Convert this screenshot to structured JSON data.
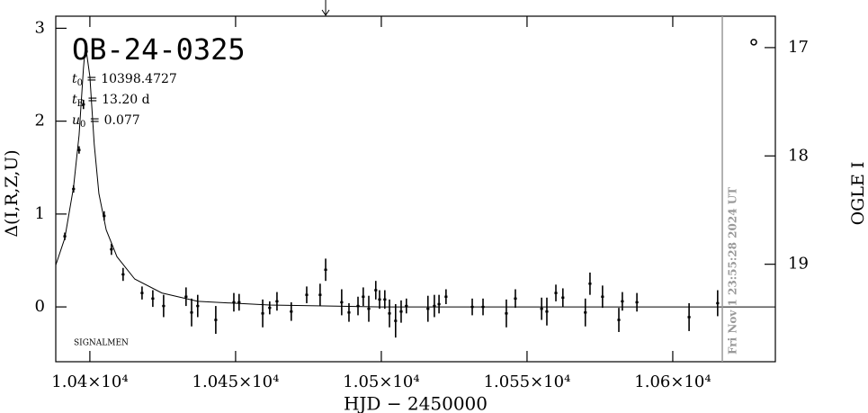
{
  "chart_data": {
    "type": "scatter",
    "title": "OB-24-0325",
    "params": [
      {
        "symbol": "t",
        "subscript": "0",
        "value": "= 10398.4727"
      },
      {
        "symbol": "t",
        "subscript": "E",
        "value": "= 13.20  d"
      },
      {
        "symbol": "u",
        "subscript": "0",
        "value": "= 0.077"
      }
    ],
    "credit": "SIGNALMEN",
    "x_label": "HJD  −  2450000",
    "y_label": "Δ(I,R,Z,U)",
    "y2_label": "OGLE I",
    "xlim": [
      10388.3,
      10635.2
    ],
    "ylim": [
      -0.59,
      3.13
    ],
    "y2lim": [
      19.9,
      16.71
    ],
    "xticks": [
      {
        "value": 10400,
        "label": "1.04×10⁴"
      },
      {
        "value": 10450,
        "label": "1.045×10⁴"
      },
      {
        "value": 10500,
        "label": "1.05×10⁴"
      },
      {
        "value": 10550,
        "label": "1.055×10⁴"
      },
      {
        "value": 10600,
        "label": "1.06×10⁴"
      }
    ],
    "yticks": [
      0,
      1,
      2,
      3
    ],
    "y2ticks": [
      17,
      18,
      19
    ],
    "now_line": {
      "x": 10617.0,
      "label": "Fri Nov  1 23:55:28 2024 UT",
      "color": "#999999"
    },
    "arrow_x": 10480.9,
    "marker": {
      "x": 10627.8,
      "y": 2.85
    },
    "x": [
      10391.4,
      10394.4,
      10396.3,
      10397.8,
      10398.8,
      10404.9,
      10407.4,
      10411.4,
      10417.9,
      10421.6,
      10425.3,
      10433,
      10434.9,
      10437,
      10443.2,
      10449.4,
      10451.2,
      10459.3,
      10461.7,
      10464.2,
      10469.1,
      10474.4,
      10479,
      10480.9,
      10486.4,
      10488.9,
      10492,
      10493.8,
      10495.7,
      10498.1,
      10499.4,
      10501.2,
      10502.8,
      10504.9,
      10506.8,
      10508.6,
      10516,
      10518.2,
      10519.8,
      10522.2,
      10531.2,
      10534.9,
      10542.9,
      10546,
      10555,
      10556.8,
      10559.9,
      10562.3,
      10570,
      10571.6,
      10575.9,
      10581.5,
      10582.7,
      10587.7,
      10605.6,
      10615.4
    ],
    "series": [
      {
        "color": "#000000",
        "values": [
          0.76,
          1.27,
          1.69,
          2.18,
          2.75,
          0.98,
          0.62,
          0.35,
          0.15,
          0.09,
          0.01,
          0.11,
          -0.06,
          0.01,
          -0.14,
          0.05,
          0.05,
          -0.07,
          -0.01,
          0.06,
          -0.05,
          0.13,
          0.13,
          0.4,
          0.05,
          -0.06,
          0.01,
          0.11,
          -0.02,
          0.18,
          0.08,
          0.08,
          -0.07,
          -0.15,
          -0.05,
          0.01,
          -0.02,
          0.01,
          0.03,
          0.11,
          0,
          0,
          -0.07,
          0.09,
          -0.02,
          -0.05,
          0.15,
          0.1,
          -0.06,
          0.25,
          0.11,
          -0.14,
          0.06,
          0.05,
          -0.11,
          0.04
        ],
        "errors": [
          0.04,
          0.04,
          0.04,
          0.05,
          0.05,
          0.05,
          0.06,
          0.07,
          0.07,
          0.09,
          0.12,
          0.1,
          0.15,
          0.12,
          0.15,
          0.1,
          0.09,
          0.15,
          0.07,
          0.1,
          0.1,
          0.09,
          0.12,
          0.12,
          0.14,
          0.1,
          0.1,
          0.1,
          0.14,
          0.1,
          0.1,
          0.1,
          0.15,
          0.18,
          0.12,
          0.08,
          0.14,
          0.12,
          0.1,
          0.08,
          0.09,
          0.09,
          0.15,
          0.1,
          0.12,
          0.15,
          0.09,
          0.1,
          0.15,
          0.12,
          0.12,
          0.13,
          0.1,
          0.1,
          0.15,
          0.14
        ]
      }
    ],
    "model": {
      "x": [
        10388.3,
        10391.4,
        10394.4,
        10396.3,
        10397.8,
        10398.5,
        10400,
        10401.5,
        10403.1,
        10405.6,
        10409.3,
        10415.4,
        10424.7,
        10437,
        10461.7,
        10500,
        10635.2
      ],
      "values": [
        0.45,
        0.74,
        1.29,
        1.85,
        2.57,
        2.82,
        2.48,
        1.75,
        1.22,
        0.83,
        0.54,
        0.3,
        0.15,
        0.06,
        0.02,
        0,
        0
      ]
    }
  }
}
